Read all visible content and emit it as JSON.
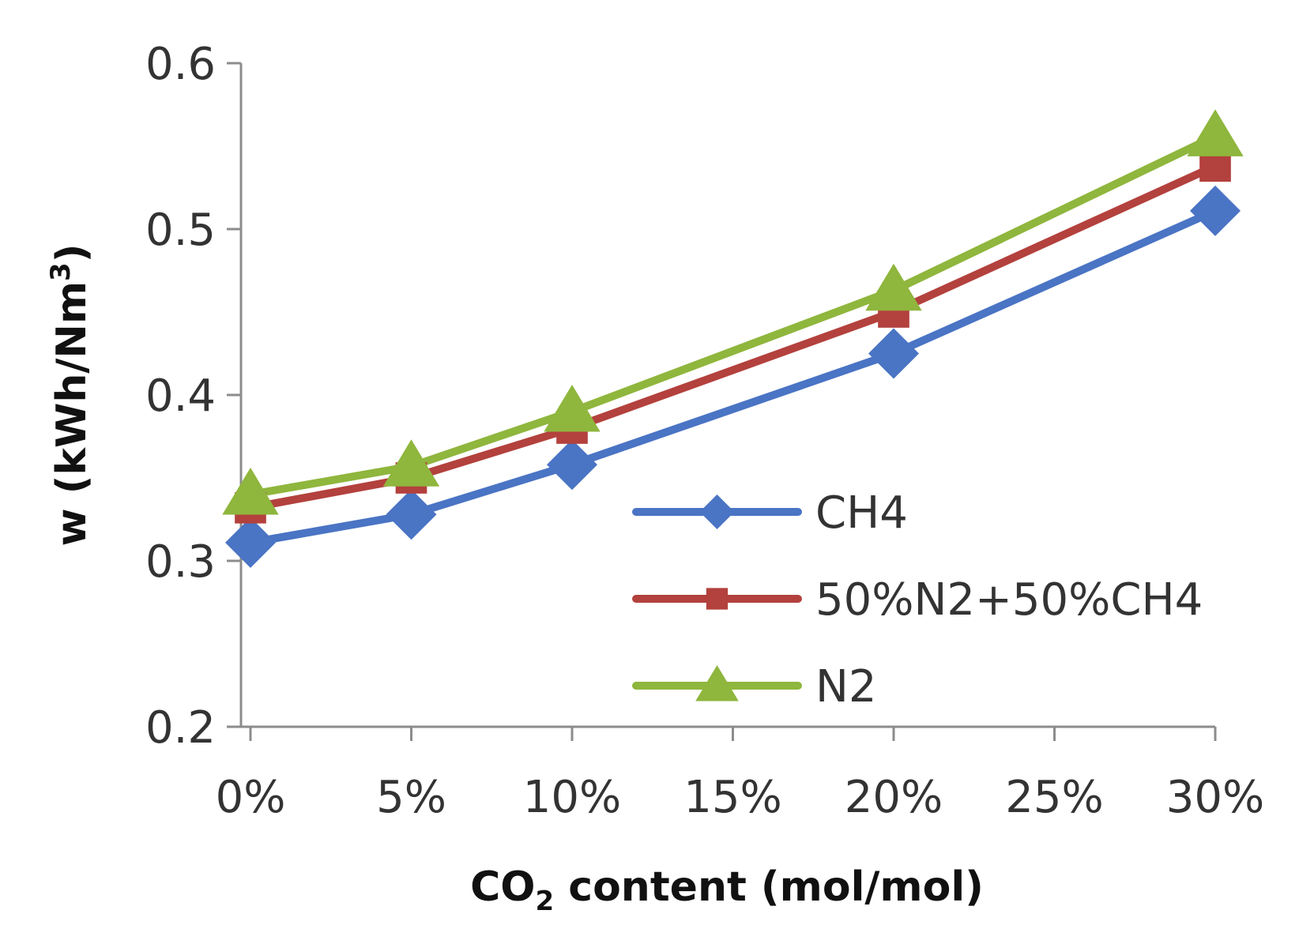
{
  "chart_data": {
    "type": "line",
    "title": "",
    "x": [
      0,
      5,
      10,
      20,
      30
    ],
    "x_tick_labels": [
      "0%",
      "5%",
      "10%",
      "15%",
      "20%",
      "25%",
      "30%"
    ],
    "x_ticks": [
      0,
      5,
      10,
      15,
      20,
      25,
      30
    ],
    "xlim": [
      0,
      30
    ],
    "xlabel": {
      "main": "CO",
      "sub": "2",
      "rest": " content (mol/mol)"
    },
    "ylabel": {
      "main": "w (kWh/Nm",
      "sup": "3",
      "rest": ")"
    },
    "y_tick_labels": [
      "0.2",
      "0.3",
      "0.4",
      "0.5",
      "0.6"
    ],
    "y_ticks": [
      0.2,
      0.3,
      0.4,
      0.5,
      0.6
    ],
    "ylim": [
      0.2,
      0.6
    ],
    "grid": false,
    "legend_position": "center-right",
    "series": [
      {
        "name": "CH4",
        "color": "#4a74c4",
        "marker": "diamond",
        "values": [
          0.311,
          0.328,
          0.358,
          0.425,
          0.511
        ]
      },
      {
        "name": "50%N2+50%CH4",
        "color": "#b3413d",
        "marker": "square",
        "values": [
          0.332,
          0.35,
          0.38,
          0.45,
          0.538
        ]
      },
      {
        "name": "N2",
        "color": "#8fb63d",
        "marker": "triangle",
        "values": [
          0.34,
          0.357,
          0.39,
          0.463,
          0.556
        ]
      }
    ]
  }
}
